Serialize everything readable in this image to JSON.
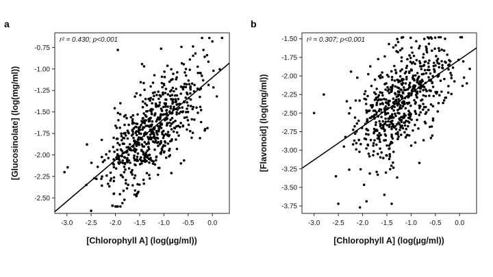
{
  "chart_data": [
    {
      "type": "scatter",
      "panel_label": "a",
      "annotation": "r² = 0.430; p<0.001",
      "xlabel": "[Chlorophyll A] (log(µg/ml))",
      "ylabel": "[Glucosinolate] (log(mg/ml))",
      "xlim": [
        -3.25,
        0.35
      ],
      "ylim": [
        -2.68,
        -0.58
      ],
      "xticks": [
        -3.0,
        -2.5,
        -2.0,
        -1.5,
        -1.0,
        -0.5,
        0.0
      ],
      "xtick_labels": [
        "-3.0",
        "-2.5",
        "-2.0",
        "-1.5",
        "-1.0",
        "-0.5",
        "0.0"
      ],
      "yticks": [
        -2.5,
        -2.25,
        -2.0,
        -1.75,
        -1.5,
        -1.25,
        -1.0,
        -0.75
      ],
      "ytick_labels": [
        "-2.50",
        "-2.25",
        "-2.00",
        "-1.75",
        "-1.50",
        "-1.25",
        "-1.00",
        "-0.75"
      ],
      "fit_line": {
        "slope": 0.48,
        "intercept": -1.1
      },
      "point_model": {
        "count": 640,
        "seed": 11,
        "x_mean": -1.25,
        "x_sd": 0.5,
        "y_sd": 0.27
      },
      "outliers": [
        [
          -1.95,
          -0.78
        ],
        [
          0.0,
          -0.68
        ],
        [
          -0.35,
          -0.82
        ],
        [
          -2.5,
          -2.65
        ],
        [
          -3.05,
          -2.2
        ],
        [
          -0.15,
          -1.7
        ],
        [
          -2.6,
          -2.35
        ]
      ],
      "grid": false
    },
    {
      "type": "scatter",
      "panel_label": "b",
      "annotation": "r² = 0.307; p<0.001",
      "xlabel": "[Chlorophyll A] (log(µg/ml))",
      "ylabel": "[Flavonoid] (log(mg/ml))",
      "xlim": [
        -3.25,
        0.35
      ],
      "ylim": [
        -3.85,
        -1.42
      ],
      "xticks": [
        -3.0,
        -2.5,
        -2.0,
        -1.5,
        -1.0,
        -0.5,
        0.0
      ],
      "xtick_labels": [
        "-3.0",
        "-2.5",
        "-2.0",
        "-1.5",
        "-1.0",
        "-0.5",
        "0.0"
      ],
      "yticks": [
        -3.75,
        -3.5,
        -3.25,
        -3.0,
        -2.75,
        -2.5,
        -2.25,
        -2.0,
        -1.75,
        -1.5
      ],
      "ytick_labels": [
        "-3.75",
        "-3.50",
        "-3.25",
        "-3.00",
        "-2.75",
        "-2.50",
        "-2.25",
        "-2.00",
        "-1.75",
        "-1.50"
      ],
      "fit_line": {
        "slope": 0.45,
        "intercept": -1.78
      },
      "point_model": {
        "count": 640,
        "seed": 29,
        "x_mean": -1.2,
        "x_sd": 0.48,
        "y_sd": 0.33
      },
      "outliers": [
        [
          -2.5,
          -3.72
        ],
        [
          -1.4,
          -3.72
        ],
        [
          -1.55,
          -3.6
        ],
        [
          -3.0,
          -2.5
        ],
        [
          -2.8,
          -2.25
        ],
        [
          -0.3,
          -1.5
        ],
        [
          0.15,
          -2.1
        ],
        [
          -2.55,
          -3.35
        ]
      ],
      "grid": false
    }
  ]
}
